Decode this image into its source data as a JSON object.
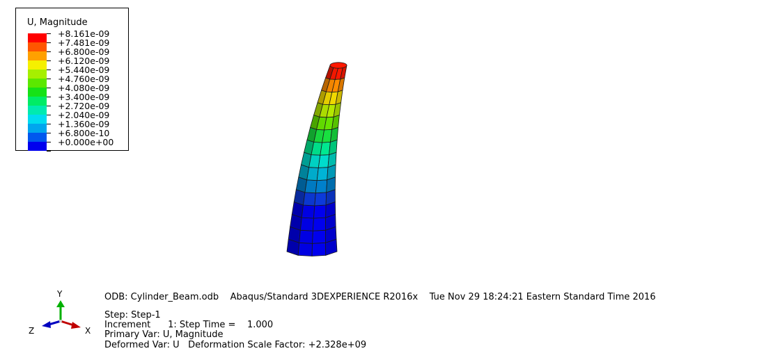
{
  "legend": {
    "title": "U, Magnitude",
    "levels": [
      {
        "label": "+8.161e-09",
        "color": "#ff0000"
      },
      {
        "label": "+7.481e-09",
        "color": "#ff5500"
      },
      {
        "label": "+6.800e-09",
        "color": "#ffa000"
      },
      {
        "label": "+6.120e-09",
        "color": "#f5f000"
      },
      {
        "label": "+5.440e-09",
        "color": "#a6ef00"
      },
      {
        "label": "+4.760e-09",
        "color": "#5ce800"
      },
      {
        "label": "+4.080e-09",
        "color": "#16e216"
      },
      {
        "label": "+3.400e-09",
        "color": "#00ec66"
      },
      {
        "label": "+2.720e-09",
        "color": "#00eab0"
      },
      {
        "label": "+2.040e-09",
        "color": "#00dcf0"
      },
      {
        "label": "+1.360e-09",
        "color": "#00a6ee"
      },
      {
        "label": "+6.800e-10",
        "color": "#0058ee"
      },
      {
        "label": "+0.000e+00",
        "color": "#0000ee"
      }
    ]
  },
  "model_colors": [
    "#0000ee",
    "#0000ee",
    "#0000ee",
    "#0000ee",
    "#0c3ada",
    "#0080cc",
    "#00b4d6",
    "#00dccc",
    "#00e890",
    "#18e040",
    "#66e400",
    "#b4e800",
    "#f0d800",
    "#ff8c00",
    "#ff1800"
  ],
  "info": {
    "odb_line": "ODB: Cylinder_Beam.odb    Abaqus/Standard 3DEXPERIENCE R2016x    Tue Nov 29 18:24:21 Eastern Standard Time 2016",
    "step_line": "Step: Step-1",
    "increment_line": "Increment      1: Step Time =    1.000",
    "primary_var_line": "Primary Var: U, Magnitude",
    "deformed_var_line": "Deformed Var: U   Deformation Scale Factor: +2.328e+09"
  },
  "triad": {
    "y_label": "Y",
    "x_label": "X",
    "z_label": "Z",
    "y_color": "#00b000",
    "x_color": "#c00000",
    "z_color": "#0000c0"
  }
}
